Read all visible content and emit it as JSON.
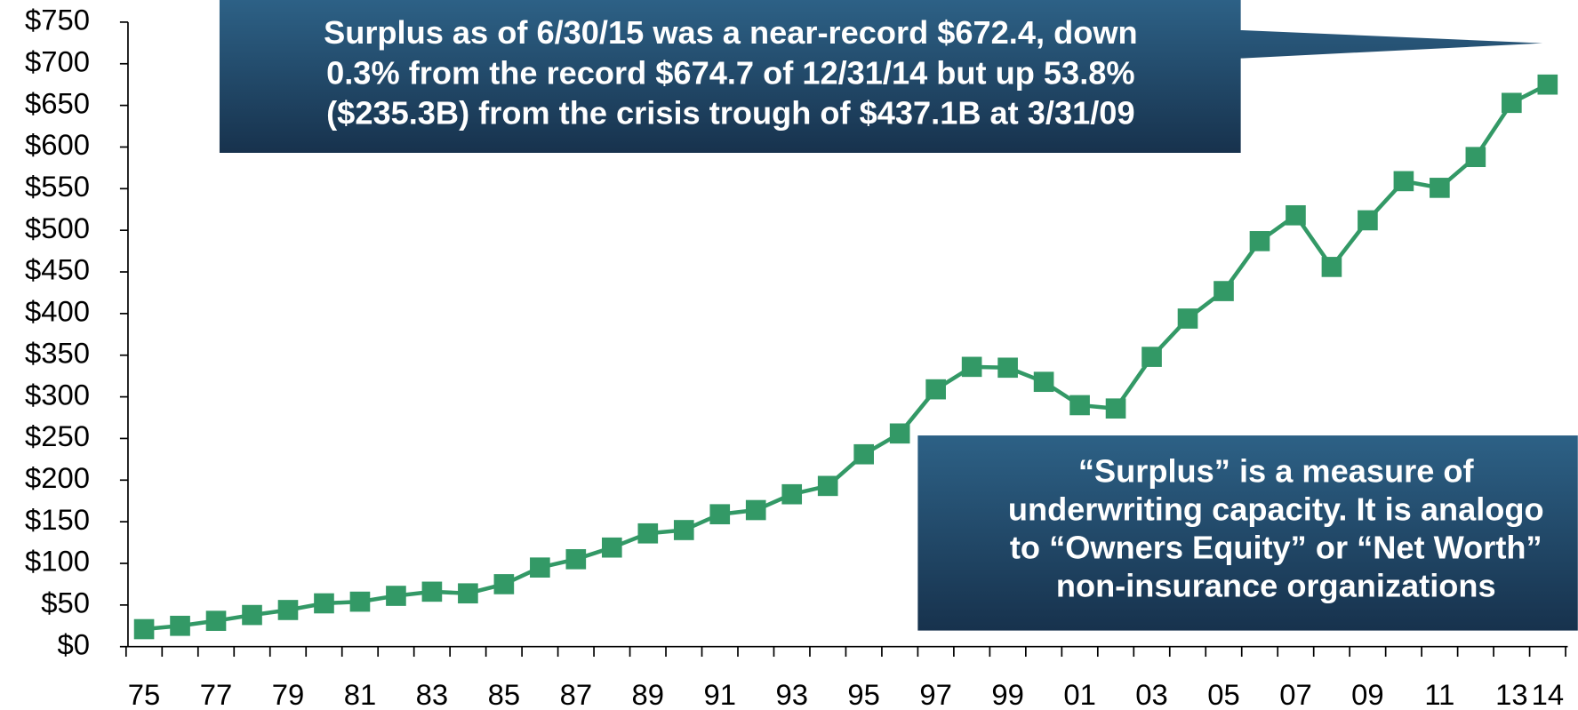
{
  "chart_data": {
    "type": "line",
    "categories": [
      "75",
      null,
      "77",
      null,
      "79",
      null,
      "81",
      null,
      "83",
      null,
      "85",
      null,
      "87",
      null,
      "89",
      null,
      "91",
      null,
      "93",
      null,
      "95",
      null,
      "97",
      null,
      "99",
      null,
      "01",
      null,
      "03",
      null,
      "05",
      null,
      "07",
      null,
      "09",
      null,
      "11",
      null,
      "13",
      "14"
    ],
    "series": [
      {
        "color": "#339966",
        "values": [
          21,
          25,
          31,
          38,
          44,
          52,
          54,
          61,
          66,
          64,
          75,
          95,
          105,
          119,
          136,
          140,
          159,
          164,
          183,
          193,
          231,
          256,
          309,
          336,
          335,
          318,
          290,
          286,
          348,
          394,
          427,
          487,
          518,
          456,
          512,
          559,
          551,
          588,
          653,
          675
        ]
      }
    ],
    "ylim": [
      0,
      750
    ],
    "yticks": [
      {
        "value": 0,
        "label": "$0"
      },
      {
        "value": 50,
        "label": "$50"
      },
      {
        "value": 100,
        "label": "$100"
      },
      {
        "value": 150,
        "label": "$150"
      },
      {
        "value": 200,
        "label": "$200"
      },
      {
        "value": 250,
        "label": "$250"
      },
      {
        "value": 300,
        "label": "$300"
      },
      {
        "value": 350,
        "label": "$350"
      },
      {
        "value": 400,
        "label": "$400"
      },
      {
        "value": 450,
        "label": "$450"
      },
      {
        "value": 500,
        "label": "$500"
      },
      {
        "value": 550,
        "label": "$550"
      },
      {
        "value": 600,
        "label": "$600"
      },
      {
        "value": 650,
        "label": "$650"
      },
      {
        "value": 700,
        "label": "$700"
      },
      {
        "value": 750,
        "label": "$750"
      }
    ],
    "annotations": [
      {
        "lines": [
          "Surplus as of 6/30/15 was a near-record $672.4, down",
          "0.3% from the record $674.7 of 12/31/14 but up 53.8%",
          "($235.3B) from the crisis trough of $437.1B at 3/31/09"
        ]
      },
      {
        "lines": [
          "“Surplus” is a measure of",
          "underwriting capacity.  It is analogo",
          "to “Owners Equity” or “Net Worth”",
          "non-insurance organizations"
        ]
      }
    ]
  }
}
